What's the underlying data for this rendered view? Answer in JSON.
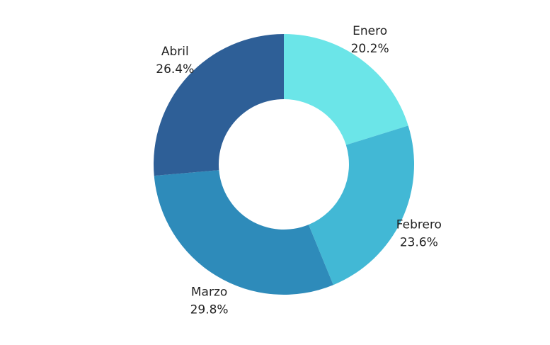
{
  "chart_data": {
    "type": "pie",
    "donut": true,
    "categories": [
      "Enero",
      "Febrero",
      "Marzo",
      "Abril"
    ],
    "values": [
      20.2,
      23.6,
      29.8,
      26.4
    ],
    "value_labels": [
      "20.2%",
      "23.6%",
      "29.8%",
      "26.4%"
    ],
    "colors": [
      "#6BE5E8",
      "#42B8D5",
      "#2E8BBA",
      "#2E5F97"
    ],
    "start_angle": "top",
    "direction": "clockwise",
    "legend": "none"
  }
}
